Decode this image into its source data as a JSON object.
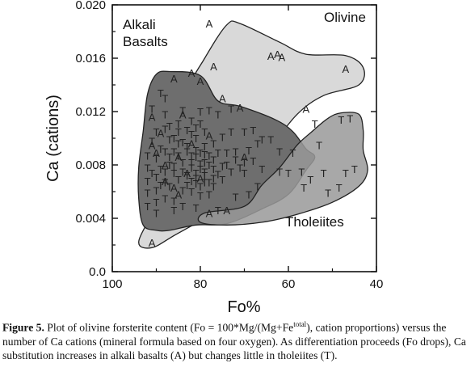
{
  "chart_data": {
    "type": "scatter",
    "xlabel": "Fo%",
    "ylabel": "Ca (cations)",
    "xlim": [
      100,
      40
    ],
    "ylim": [
      0.0,
      0.02
    ],
    "x_reversed": true,
    "x_ticks": [
      "100",
      "80",
      "60",
      "40"
    ],
    "y_ticks": [
      "0.0",
      "0.004",
      "0.008",
      "0.012",
      "0.016",
      "0.020"
    ],
    "regions": [
      {
        "label": "Alkali\nBasalts",
        "fill": "#d9d9d9"
      },
      {
        "label": "Olivine",
        "fill": "#d9d9d9"
      },
      {
        "label": "Tholeiites",
        "fill": "#999999"
      }
    ],
    "series": [
      {
        "name": "A",
        "points": [
          [
            78,
            0.0185
          ],
          [
            64,
            0.0161
          ],
          [
            77,
            0.0153
          ],
          [
            61.5,
            0.016
          ],
          [
            62.5,
            0.0162
          ],
          [
            47,
            0.0151
          ],
          [
            82,
            0.0148
          ],
          [
            86,
            0.0144
          ],
          [
            80,
            0.0142
          ],
          [
            56,
            0.0121
          ],
          [
            91,
            0.0021
          ],
          [
            74,
            0.0045
          ],
          [
            91,
            0.0094
          ],
          [
            90,
            0.0088
          ],
          [
            85,
            0.0085
          ],
          [
            88,
            0.0079
          ],
          [
            83,
            0.0073
          ],
          [
            80,
            0.0069
          ],
          [
            91,
            0.0115
          ],
          [
            75,
            0.0129
          ],
          [
            71,
            0.0122
          ],
          [
            70,
            0.0085
          ],
          [
            78,
            0.0043
          ],
          [
            86,
            0.0062
          ],
          [
            82,
            0.0095
          ],
          [
            78,
            0.0101
          ],
          [
            89,
            0.0103
          ],
          [
            84,
            0.0117
          ],
          [
            88,
            0.0067
          ],
          [
            85,
            0.0057
          ]
        ]
      },
      {
        "name": "T",
        "points": [
          [
            89,
            0.0133
          ],
          [
            88,
            0.0129
          ],
          [
            84,
            0.012
          ],
          [
            80,
            0.0119
          ],
          [
            78,
            0.012
          ],
          [
            76,
            0.0117
          ],
          [
            73,
            0.0121
          ],
          [
            70,
            0.0104
          ],
          [
            68,
            0.0105
          ],
          [
            66,
            0.0098
          ],
          [
            64,
            0.0098
          ],
          [
            62,
            0.0089
          ],
          [
            59,
            0.0088
          ],
          [
            57,
            0.0074
          ],
          [
            55,
            0.0068
          ],
          [
            52,
            0.0073
          ],
          [
            54,
            0.011
          ],
          [
            53,
            0.0094
          ],
          [
            48,
            0.0113
          ],
          [
            46,
            0.0114
          ],
          [
            45,
            0.0076
          ],
          [
            47,
            0.0073
          ],
          [
            51,
            0.0058
          ],
          [
            48.5,
            0.0062
          ],
          [
            56.5,
            0.0062
          ],
          [
            60,
            0.0073
          ],
          [
            62,
            0.0074
          ],
          [
            66,
            0.0076
          ],
          [
            67,
            0.0063
          ],
          [
            69,
            0.0057
          ],
          [
            72,
            0.0055
          ],
          [
            76,
            0.0045
          ],
          [
            81,
            0.0047
          ],
          [
            84,
            0.0048
          ],
          [
            92,
            0.0048
          ],
          [
            90,
            0.0043
          ],
          [
            86,
            0.0045
          ],
          [
            78,
            0.0066
          ],
          [
            75,
            0.0078
          ],
          [
            73,
            0.0074
          ],
          [
            71,
            0.0077
          ],
          [
            70,
            0.0073
          ],
          [
            77,
            0.0095
          ],
          [
            75,
            0.01
          ],
          [
            73,
            0.0104
          ],
          [
            72,
            0.0089
          ],
          [
            81,
            0.009
          ],
          [
            83,
            0.0089
          ],
          [
            85,
            0.0095
          ],
          [
            87,
            0.0098
          ],
          [
            89,
            0.0091
          ],
          [
            91,
            0.0097
          ],
          [
            92,
            0.0086
          ],
          [
            92,
            0.0077
          ],
          [
            92,
            0.0067
          ],
          [
            92,
            0.0058
          ],
          [
            90,
            0.006
          ],
          [
            88,
            0.0066
          ],
          [
            87,
            0.0063
          ],
          [
            85,
            0.0068
          ],
          [
            83,
            0.0071
          ],
          [
            82,
            0.0067
          ],
          [
            81,
            0.0065
          ],
          [
            79,
            0.0071
          ],
          [
            80,
            0.0076
          ],
          [
            82,
            0.0081
          ],
          [
            84,
            0.0081
          ],
          [
            86,
            0.0078
          ],
          [
            87,
            0.0085
          ],
          [
            85,
            0.0086
          ],
          [
            83,
            0.0093
          ],
          [
            81,
            0.0099
          ],
          [
            79,
            0.0104
          ],
          [
            80,
            0.011
          ],
          [
            82,
            0.0112
          ],
          [
            83,
            0.0105
          ],
          [
            85,
            0.0104
          ],
          [
            88,
            0.0106
          ],
          [
            90,
            0.0104
          ],
          [
            77,
            0.0083
          ],
          [
            76,
            0.0088
          ],
          [
            74,
            0.0088
          ],
          [
            75,
            0.0068
          ],
          [
            78,
            0.0057
          ],
          [
            80,
            0.0056
          ],
          [
            82,
            0.0059
          ],
          [
            84,
            0.006
          ],
          [
            86,
            0.0052
          ],
          [
            88,
            0.0054
          ],
          [
            90,
            0.0051
          ],
          [
            79,
            0.0087
          ],
          [
            81,
            0.0085
          ],
          [
            80,
            0.008
          ],
          [
            78,
            0.0079
          ],
          [
            79,
            0.0074
          ],
          [
            81,
            0.0073
          ],
          [
            84,
            0.0074
          ],
          [
            86,
            0.0073
          ],
          [
            88,
            0.0074
          ],
          [
            90,
            0.007
          ],
          [
            89,
            0.0076
          ],
          [
            87,
            0.0079
          ],
          [
            86,
            0.0089
          ],
          [
            88,
            0.0089
          ],
          [
            90,
            0.0084
          ],
          [
            91,
            0.0073
          ],
          [
            89,
            0.0064
          ],
          [
            83,
            0.0064
          ],
          [
            80,
            0.0063
          ],
          [
            77,
            0.0063
          ],
          [
            76,
            0.0072
          ],
          [
            74,
            0.0079
          ],
          [
            72,
            0.0083
          ],
          [
            70,
            0.0081
          ],
          [
            68,
            0.0082
          ],
          [
            69,
            0.009
          ],
          [
            67,
            0.0095
          ],
          [
            82,
            0.0102
          ],
          [
            84,
            0.0096
          ],
          [
            86,
            0.0099
          ],
          [
            87,
            0.0108
          ],
          [
            85,
            0.011
          ],
          [
            81,
            0.0107
          ],
          [
            88,
            0.0117
          ],
          [
            91,
            0.0121
          ],
          [
            79,
            0.0093
          ],
          [
            78,
            0.0086
          ],
          [
            80,
            0.0088
          ],
          [
            82,
            0.0086
          ],
          [
            79,
            0.0081
          ],
          [
            82,
            0.0077
          ],
          [
            77,
            0.0076
          ],
          [
            81,
            0.0069
          ],
          [
            79,
            0.0066
          ],
          [
            77,
            0.0069
          ]
        ]
      }
    ],
    "region_shapes": {
      "alkali_basalts": [
        [
          83,
          0.0135
        ],
        [
          79,
          0.016
        ],
        [
          74,
          0.0185
        ],
        [
          71,
          0.0186
        ],
        [
          62,
          0.0172
        ],
        [
          56,
          0.0163
        ],
        [
          47,
          0.0162
        ],
        [
          43,
          0.0153
        ],
        [
          44,
          0.014
        ],
        [
          52,
          0.0132
        ],
        [
          58,
          0.0118
        ],
        [
          64,
          0.0093
        ],
        [
          68,
          0.0075
        ],
        [
          76,
          0.0047
        ],
        [
          86,
          0.0027
        ],
        [
          91,
          0.0018
        ],
        [
          94,
          0.0022
        ],
        [
          91,
          0.0045
        ],
        [
          88,
          0.008
        ]
      ],
      "dark_core": [
        [
          92,
          0.0133
        ],
        [
          90,
          0.0148
        ],
        [
          87,
          0.015
        ],
        [
          80,
          0.0147
        ],
        [
          76,
          0.0128
        ],
        [
          71,
          0.0124
        ],
        [
          63,
          0.0114
        ],
        [
          59,
          0.0105
        ],
        [
          56,
          0.0092
        ],
        [
          54,
          0.0086
        ],
        [
          56,
          0.0076
        ],
        [
          60,
          0.0058
        ],
        [
          66,
          0.0047
        ],
        [
          74,
          0.0036
        ],
        [
          81,
          0.0035
        ],
        [
          87,
          0.0031
        ],
        [
          90,
          0.0031
        ],
        [
          93,
          0.0035
        ],
        [
          94,
          0.0055
        ],
        [
          94,
          0.0078
        ],
        [
          93,
          0.0105
        ]
      ],
      "tholeiites": [
        [
          80,
          0.0037
        ],
        [
          79,
          0.0044
        ],
        [
          70,
          0.0049
        ],
        [
          66,
          0.0065
        ],
        [
          62,
          0.0078
        ],
        [
          58,
          0.0095
        ],
        [
          55,
          0.0104
        ],
        [
          51,
          0.0115
        ],
        [
          48,
          0.0119
        ],
        [
          44,
          0.0118
        ],
        [
          43,
          0.0106
        ],
        [
          43,
          0.0091
        ],
        [
          42,
          0.0076
        ],
        [
          44,
          0.0064
        ],
        [
          50,
          0.0052
        ],
        [
          58,
          0.0043
        ],
        [
          66,
          0.0037
        ],
        [
          74,
          0.0035
        ]
      ]
    }
  },
  "caption": {
    "label": "Figure 5.",
    "part1": " Plot of olivine forsterite content (Fo = 100*Mg/(Mg+Fe",
    "sup": "total",
    "part2": "), cation proportions) versus the number of Ca cations (mineral formula based on four oxygen). As differentiation proceeds (Fo drops), Ca substitution increases in alkali basalts (A) but changes little in tholeiites (T)."
  }
}
